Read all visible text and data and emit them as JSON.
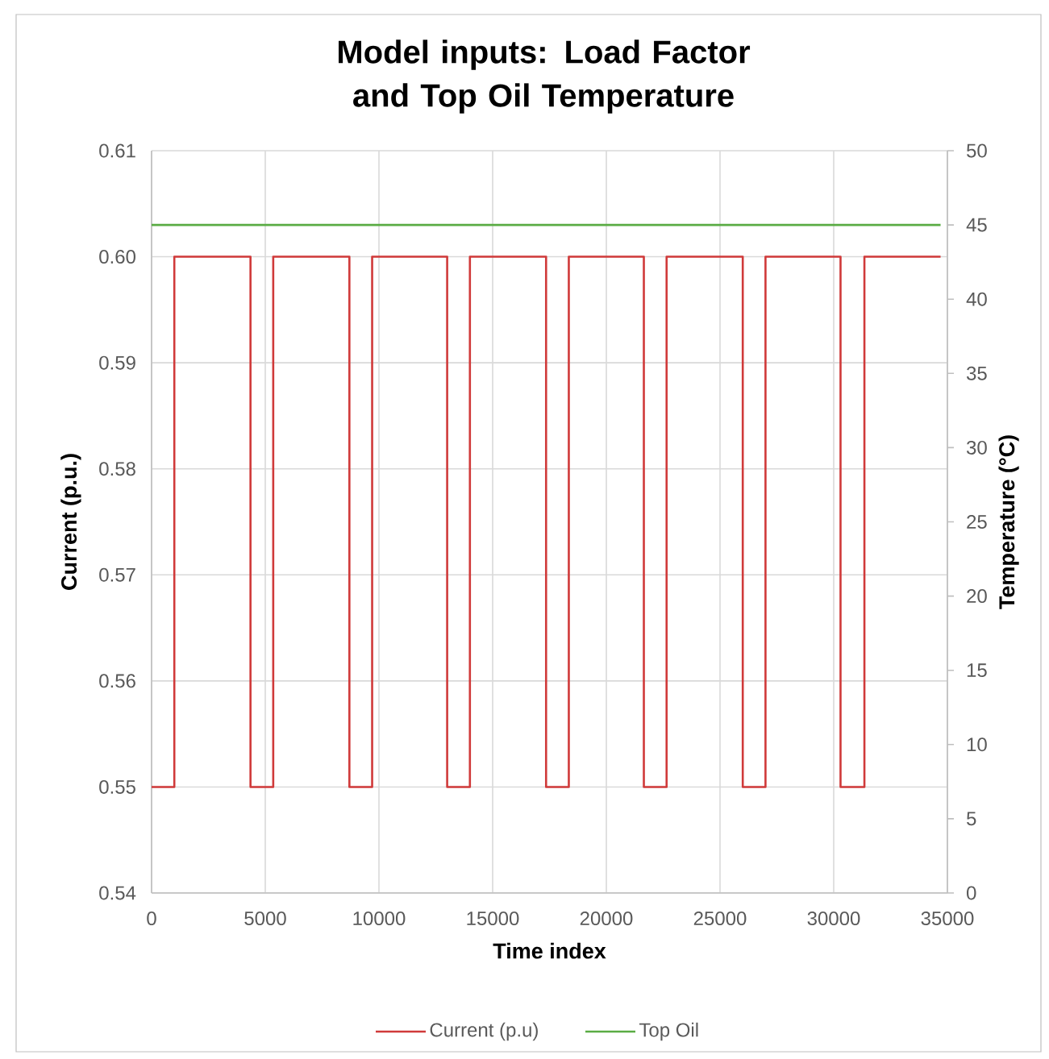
{
  "chart_data": {
    "type": "step",
    "title": "Model inputs: Load Factor and Top Oil Temperature",
    "xlabel": "Time index",
    "ylabel": "Current (p.u.)",
    "y2label": "Temperature (°C)",
    "xlim": [
      0,
      35000
    ],
    "xticks": [
      0,
      5000,
      10000,
      15000,
      20000,
      25000,
      30000,
      35000
    ],
    "ylim": [
      0.54,
      0.61
    ],
    "yticks": [
      {
        "value": 0.54,
        "label": "0.54"
      },
      {
        "value": 0.55,
        "label": "0.55"
      },
      {
        "value": 0.56,
        "label": "0.56"
      },
      {
        "value": 0.57,
        "label": "0.57"
      },
      {
        "value": 0.58,
        "label": "0.58"
      },
      {
        "value": 0.59,
        "label": "0.59"
      },
      {
        "value": 0.6,
        "label": "0.60"
      },
      {
        "value": 0.61,
        "label": "0.61"
      }
    ],
    "y2lim": [
      0,
      50
    ],
    "y2ticks": [
      0,
      5,
      10,
      15,
      20,
      25,
      30,
      35,
      40,
      45,
      50
    ],
    "grid": true,
    "legend": "bottom",
    "series": [
      {
        "name": "Current (p.u)",
        "color": "#d03a3a",
        "x": [
          0,
          1000,
          4350,
          5350,
          8700,
          9700,
          13000,
          14000,
          17350,
          18350,
          21650,
          22650,
          26000,
          27000,
          30300,
          31350,
          34700
        ],
        "values": [
          0.55,
          0.6,
          0.55,
          0.6,
          0.55,
          0.6,
          0.55,
          0.6,
          0.55,
          0.6,
          0.55,
          0.6,
          0.55,
          0.6,
          0.55,
          0.6,
          0.6
        ]
      },
      {
        "name": "Top Oil",
        "color": "#5aac44",
        "type": "line",
        "axis": "y2",
        "x": [
          0,
          34700
        ],
        "values": [
          45,
          45
        ]
      }
    ]
  }
}
